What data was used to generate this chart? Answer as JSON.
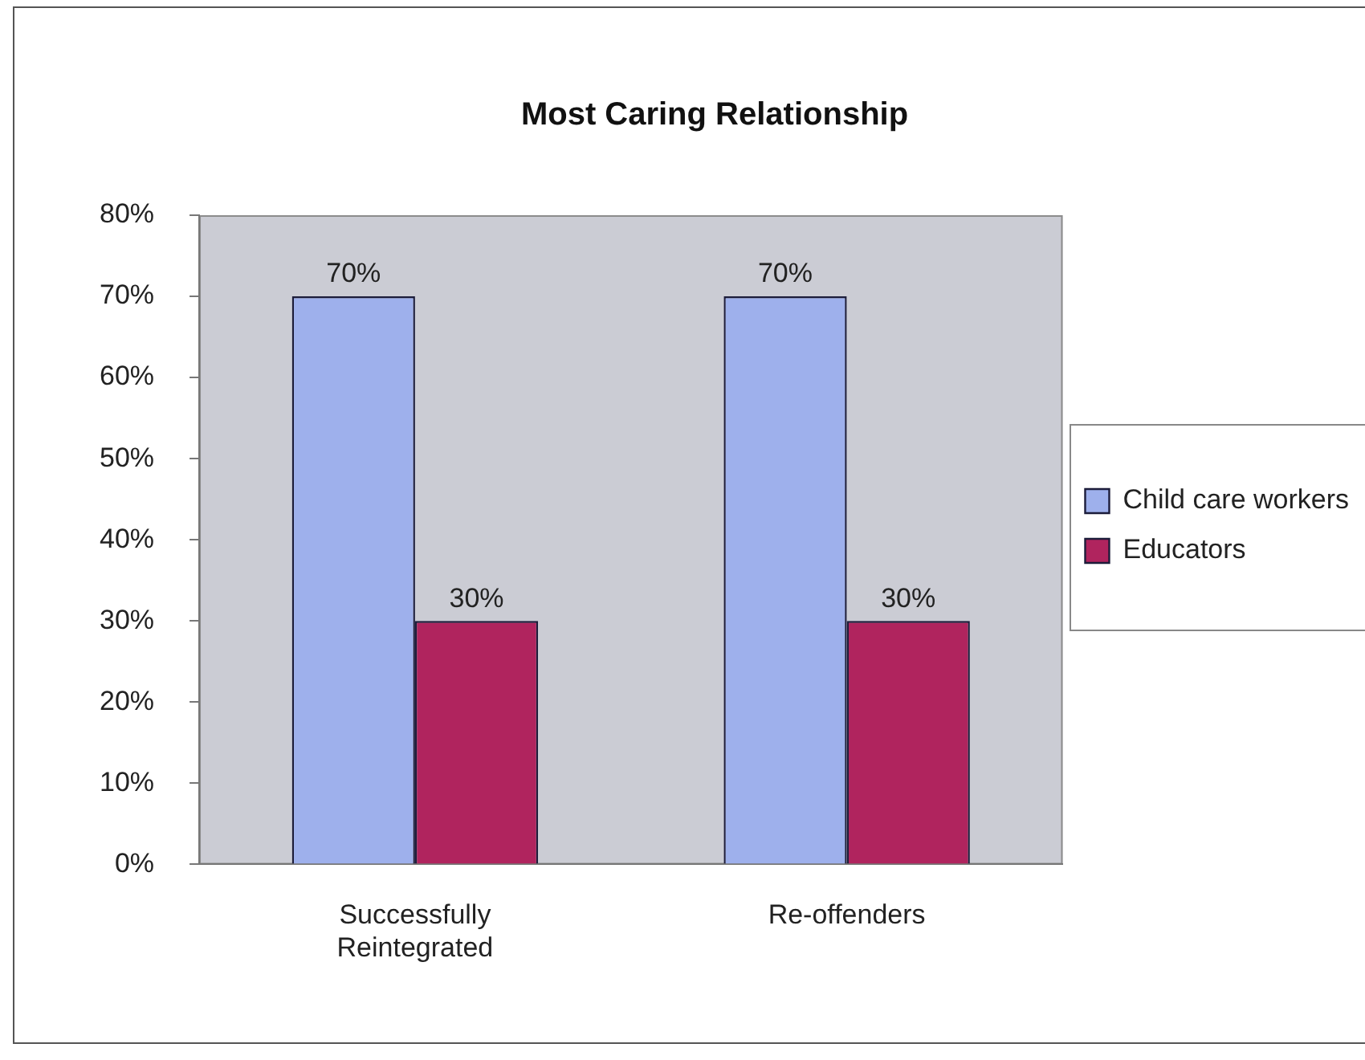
{
  "chart_data": {
    "type": "bar",
    "title": "Most Caring Relationship",
    "categories": [
      "Successfully Reintegrated",
      "Re-offenders"
    ],
    "series": [
      {
        "name": "Child care workers",
        "color": "#9eb0ec",
        "values": [
          70,
          70
        ],
        "value_labels": [
          "70%",
          "70%"
        ]
      },
      {
        "name": "Educators",
        "color": "#b0245e",
        "values": [
          30,
          30
        ],
        "value_labels": [
          "30%",
          "30%"
        ]
      }
    ],
    "ylim": [
      0,
      80
    ],
    "yticks": [
      {
        "value": 0,
        "label": "0%"
      },
      {
        "value": 10,
        "label": "10%"
      },
      {
        "value": 20,
        "label": "20%"
      },
      {
        "value": 30,
        "label": "30%"
      },
      {
        "value": 40,
        "label": "40%"
      },
      {
        "value": 50,
        "label": "50%"
      },
      {
        "value": 60,
        "label": "60%"
      },
      {
        "value": 70,
        "label": "70%"
      },
      {
        "value": 80,
        "label": "80%"
      }
    ],
    "legend": "right"
  }
}
